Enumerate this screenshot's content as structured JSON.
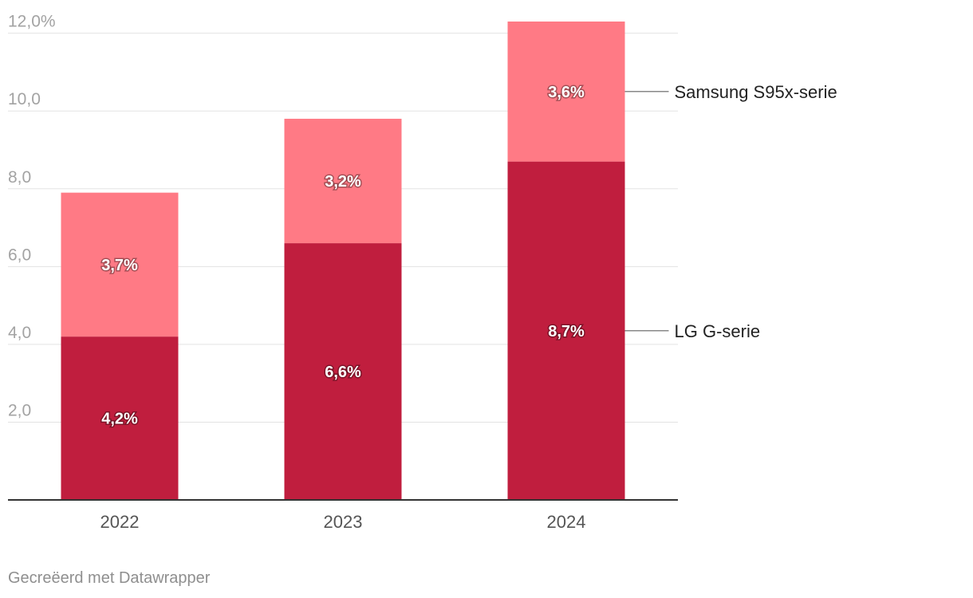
{
  "chart_data": {
    "type": "bar",
    "stacked": true,
    "categories": [
      "2022",
      "2023",
      "2024"
    ],
    "series": [
      {
        "name": "LG G-serie",
        "values": [
          4.2,
          6.6,
          8.7
        ],
        "labels": [
          "4,2%",
          "6,6%",
          "8,7%"
        ],
        "color": "#c01e3e"
      },
      {
        "name": "Samsung S95x-serie",
        "values": [
          3.7,
          3.2,
          3.6
        ],
        "labels": [
          "3,7%",
          "3,2%",
          "3,6%"
        ],
        "color": "#ff7a85"
      }
    ],
    "yticks": [
      {
        "value": 2,
        "label": "2,0"
      },
      {
        "value": 4,
        "label": "4,0"
      },
      {
        "value": 6,
        "label": "6,0"
      },
      {
        "value": 8,
        "label": "8,0"
      },
      {
        "value": 10,
        "label": "10,0"
      },
      {
        "value": 12,
        "label": "12,0%"
      }
    ],
    "ylim": [
      0,
      12.3
    ],
    "grid": true,
    "legend": "direct-labels-right"
  },
  "footer": {
    "text": "Gecreëerd met Datawrapper"
  },
  "colors": {
    "grid": "#e3e3e3",
    "axis": "#333333",
    "leader": "#888888"
  }
}
